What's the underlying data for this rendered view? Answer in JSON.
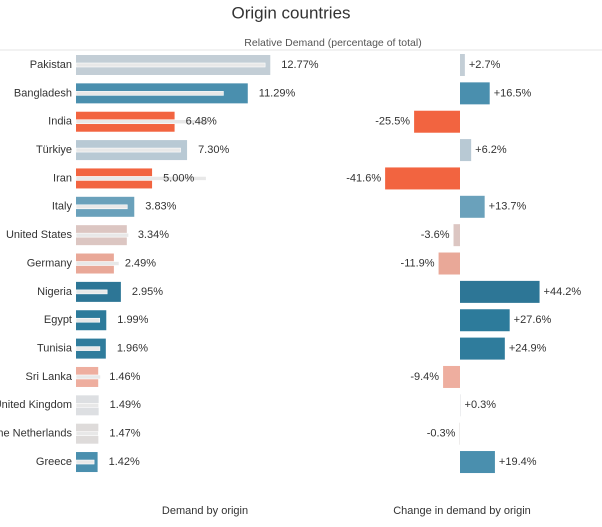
{
  "title": "Origin countries",
  "subtitle": "Relative Demand (percentage of total)",
  "chart_data": [
    {
      "type": "hbar-ref",
      "xlabel": "Demand by origin",
      "categories": [
        "Pakistan",
        "Bangladesh",
        "India",
        "Türkiye",
        "Iran",
        "Italy",
        "United States",
        "Germany",
        "Nigeria",
        "Egypt",
        "Tunisia",
        "Sri Lanka",
        "United Kingdom",
        "The Netherlands",
        "Greece"
      ],
      "values": [
        12.77,
        11.29,
        6.48,
        7.3,
        5.0,
        3.83,
        3.34,
        2.49,
        2.95,
        1.99,
        1.96,
        1.46,
        1.49,
        1.47,
        1.42
      ],
      "value_labels": [
        "12.77%",
        "11.29%",
        "6.48%",
        "7.30%",
        "5.00%",
        "3.83%",
        "3.34%",
        "2.49%",
        "2.95%",
        "1.99%",
        "1.96%",
        "1.46%",
        "1.49%",
        "1.47%",
        "1.42%"
      ],
      "reference_values": [
        12.43,
        9.69,
        8.7,
        6.87,
        8.56,
        3.37,
        3.46,
        2.83,
        2.05,
        1.56,
        1.57,
        1.61,
        1.49,
        1.47,
        1.19
      ],
      "colors": [
        "#c3ced6",
        "#4a8fae",
        "#f26440",
        "#b8c9d4",
        "#f26440",
        "#6aa1bb",
        "#dcc6c2",
        "#e9a898",
        "#2d7696",
        "#2d7b9b",
        "#2f7c9c",
        "#eeae9f",
        "#dddfe2",
        "#dedbda",
        "#4a8fae"
      ],
      "xlim": [
        0,
        14
      ]
    },
    {
      "type": "hbar-diverging",
      "xlabel": "Change in demand by origin",
      "values": [
        2.7,
        16.5,
        -25.5,
        6.2,
        -41.6,
        13.7,
        -3.6,
        -11.9,
        44.2,
        27.6,
        24.9,
        -9.4,
        0.3,
        -0.3,
        19.4
      ],
      "value_labels": [
        "+2.7%",
        "+16.5%",
        "-25.5%",
        "+6.2%",
        "-41.6%",
        "+13.7%",
        "-3.6%",
        "-11.9%",
        "+44.2%",
        "+27.6%",
        "+24.9%",
        "-9.4%",
        "+0.3%",
        "-0.3%",
        "+19.4%"
      ],
      "colors": [
        "#c3ced6",
        "#4a8fae",
        "#f26440",
        "#b8c9d4",
        "#f26440",
        "#6aa1bb",
        "#dcc6c2",
        "#e9a898",
        "#2d7696",
        "#2d7b9b",
        "#2f7c9c",
        "#eeae9f",
        "#dddfe2",
        "#dedbda",
        "#4a8fae"
      ],
      "xlim": [
        -45,
        50
      ]
    }
  ]
}
